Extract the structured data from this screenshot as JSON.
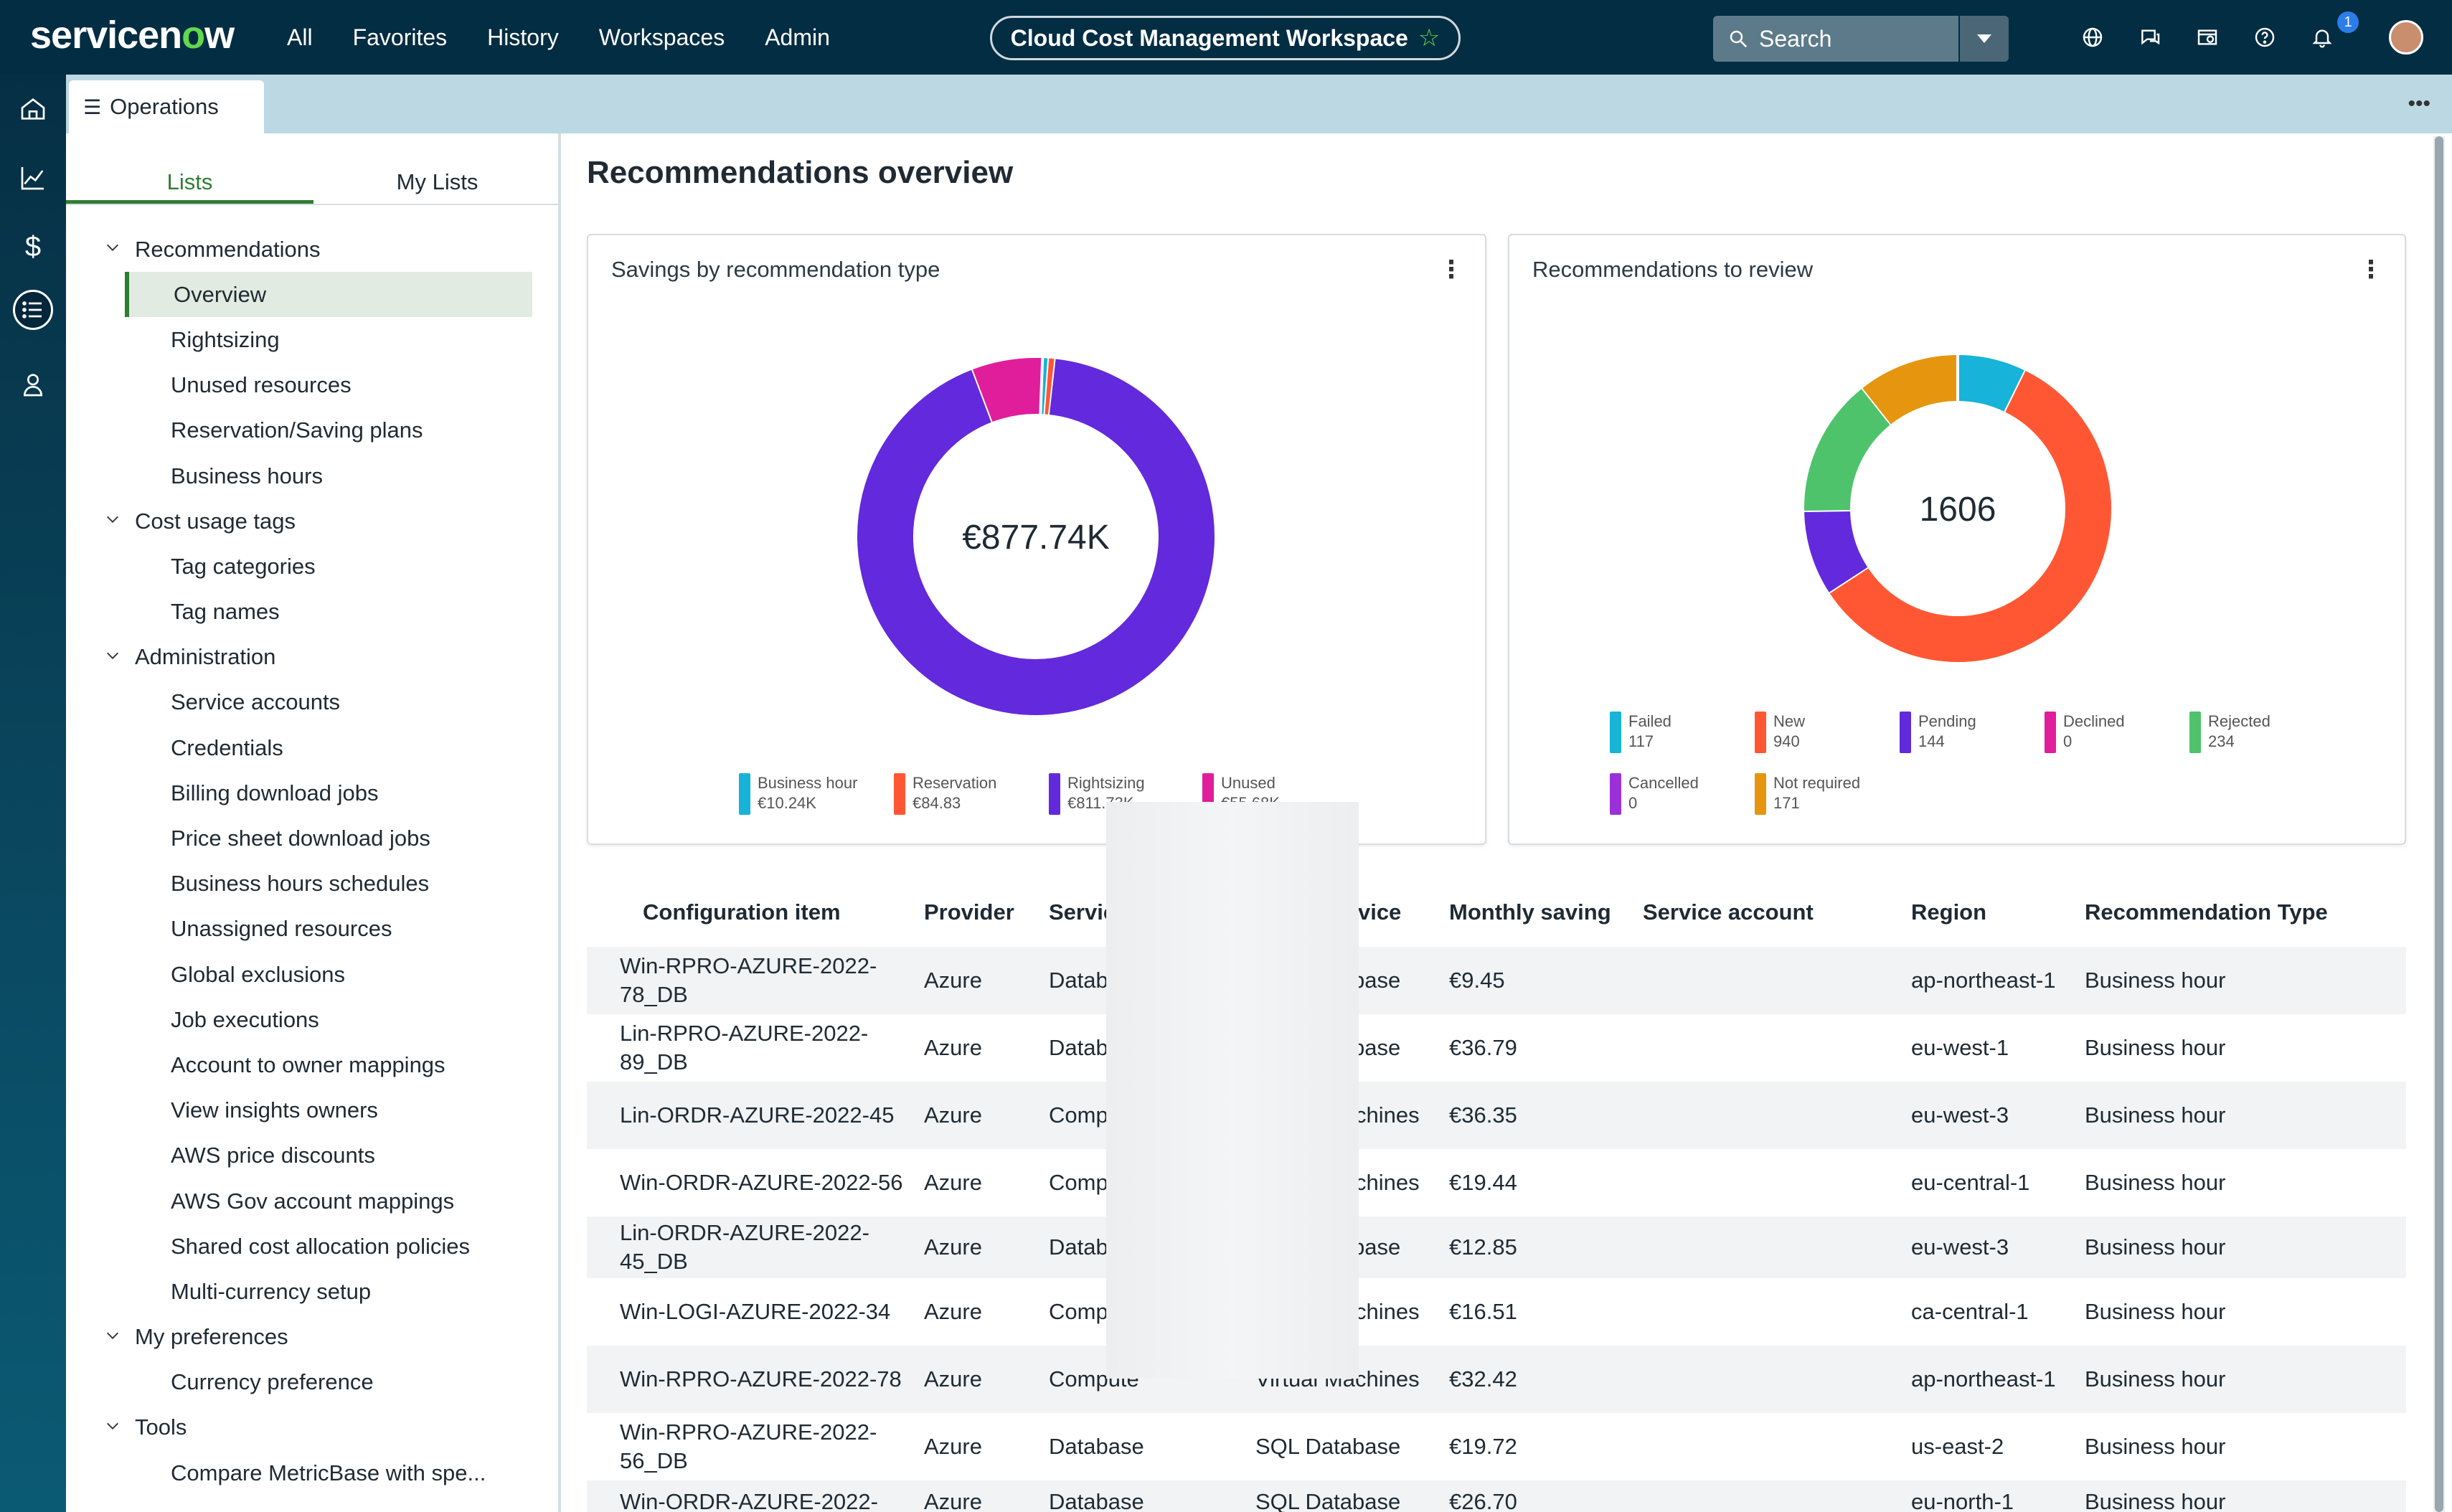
{
  "header": {
    "logo_pre": "servicen",
    "logo_o": "o",
    "logo_post": "w",
    "nav": [
      "All",
      "Favorites",
      "History",
      "Workspaces",
      "Admin"
    ],
    "workspace_title": "Cloud Cost Management Workspace",
    "search_placeholder": "Search",
    "notification_count": "1",
    "icons": [
      "globe-icon",
      "chat-icon",
      "help-icon",
      "question-icon",
      "bell-icon"
    ]
  },
  "rail": [
    "home-icon",
    "chart-icon",
    "dollar-icon",
    "list-icon",
    "user-icon"
  ],
  "tab": {
    "label": "Operations"
  },
  "sidebar": {
    "tabs": [
      "Lists",
      "My Lists"
    ],
    "tree": [
      {
        "type": "group",
        "label": "Recommendations"
      },
      {
        "type": "item",
        "label": "Overview",
        "selected": true
      },
      {
        "type": "item",
        "label": "Rightsizing"
      },
      {
        "type": "item",
        "label": "Unused resources"
      },
      {
        "type": "item",
        "label": "Reservation/Saving plans"
      },
      {
        "type": "item",
        "label": "Business hours"
      },
      {
        "type": "group",
        "label": "Cost usage tags"
      },
      {
        "type": "item",
        "label": "Tag categories"
      },
      {
        "type": "item",
        "label": "Tag names"
      },
      {
        "type": "group",
        "label": "Administration"
      },
      {
        "type": "item",
        "label": "Service accounts"
      },
      {
        "type": "item",
        "label": "Credentials"
      },
      {
        "type": "item",
        "label": "Billing download jobs"
      },
      {
        "type": "item",
        "label": "Price sheet download jobs"
      },
      {
        "type": "item",
        "label": "Business hours schedules"
      },
      {
        "type": "item",
        "label": "Unassigned resources"
      },
      {
        "type": "item",
        "label": "Global exclusions"
      },
      {
        "type": "item",
        "label": "Job executions"
      },
      {
        "type": "item",
        "label": "Account to owner mappings"
      },
      {
        "type": "item",
        "label": "View insights owners"
      },
      {
        "type": "item",
        "label": "AWS price discounts"
      },
      {
        "type": "item",
        "label": "AWS Gov account mappings"
      },
      {
        "type": "item",
        "label": "Shared cost allocation policies"
      },
      {
        "type": "item",
        "label": "Multi-currency setup"
      },
      {
        "type": "group",
        "label": "My preferences"
      },
      {
        "type": "item",
        "label": "Currency preference"
      },
      {
        "type": "group",
        "label": "Tools"
      },
      {
        "type": "item",
        "label": "Compare MetricBase with spe..."
      }
    ]
  },
  "main": {
    "title": "Recommendations overview"
  },
  "chart_data": [
    {
      "type": "pie",
      "title": "Savings by recommendation type",
      "center_label": "€877.74K",
      "slices": [
        {
          "name": "Business hour",
          "label": "€10.24K",
          "value": 10.24,
          "color": "#17b3d8"
        },
        {
          "name": "Reservation",
          "label": "€84.83",
          "value": 0.08483,
          "color": "#ff5733"
        },
        {
          "name": "Rightsizing",
          "label": "€811.73K",
          "value": 811.73,
          "color": "#6329dc"
        },
        {
          "name": "Unused",
          "label": "€55.68K",
          "value": 55.68,
          "color": "#e01e9b"
        }
      ]
    },
    {
      "type": "pie",
      "title": "Recommendations to review",
      "center_label": "1606",
      "slices": [
        {
          "name": "Failed",
          "label": "117",
          "value": 117,
          "color": "#17b3d8"
        },
        {
          "name": "New",
          "label": "940",
          "value": 940,
          "color": "#ff5733"
        },
        {
          "name": "Pending",
          "label": "144",
          "value": 144,
          "color": "#6329dc"
        },
        {
          "name": "Declined",
          "label": "0",
          "value": 0,
          "color": "#e01e9b"
        },
        {
          "name": "Rejected",
          "label": "234",
          "value": 234,
          "color": "#4fc36b"
        },
        {
          "name": "Cancelled",
          "label": "0",
          "value": 0,
          "color": "#9b30d9"
        },
        {
          "name": "Not required",
          "label": "171",
          "value": 171,
          "color": "#e5960e"
        }
      ]
    }
  ],
  "table": {
    "columns": [
      "Configuration item",
      "Provider",
      "Service category",
      "Cloud service",
      "Monthly saving",
      "Service account",
      "Region",
      "Recommendation Type"
    ],
    "rows": [
      [
        "Win-RPRO-AZURE-2022-78_DB",
        "Azure",
        "Database",
        "SQL Database",
        "€9.45",
        "",
        "ap-northeast-1",
        "Business hour"
      ],
      [
        "Lin-RPRO-AZURE-2022-89_DB",
        "Azure",
        "Database",
        "SQL Database",
        "€36.79",
        "",
        "eu-west-1",
        "Business hour"
      ],
      [
        "Lin-ORDR-AZURE-2022-45",
        "Azure",
        "Compute",
        "Virtual Machines",
        "€36.35",
        "",
        "eu-west-3",
        "Business hour"
      ],
      [
        "Win-ORDR-AZURE-2022-56",
        "Azure",
        "Compute",
        "Virtual Machines",
        "€19.44",
        "",
        "eu-central-1",
        "Business hour"
      ],
      [
        "Lin-ORDR-AZURE-2022-45_DB",
        "Azure",
        "Database",
        "SQL Database",
        "€12.85",
        "",
        "eu-west-3",
        "Business hour"
      ],
      [
        "Win-LOGI-AZURE-2022-34",
        "Azure",
        "Compute",
        "Virtual Machines",
        "€16.51",
        "",
        "ca-central-1",
        "Business hour"
      ],
      [
        "Win-RPRO-AZURE-2022-78",
        "Azure",
        "Compute",
        "Virtual Machines",
        "€32.42",
        "",
        "ap-northeast-1",
        "Business hour"
      ],
      [
        "Win-RPRO-AZURE-2022-56_DB",
        "Azure",
        "Database",
        "SQL Database",
        "€19.72",
        "",
        "us-east-2",
        "Business hour"
      ],
      [
        "Win-ORDR-AZURE-2022-",
        "Azure",
        "Database",
        "SQL Database",
        "€26.70",
        "",
        "eu-north-1",
        "Business hour"
      ]
    ]
  }
}
